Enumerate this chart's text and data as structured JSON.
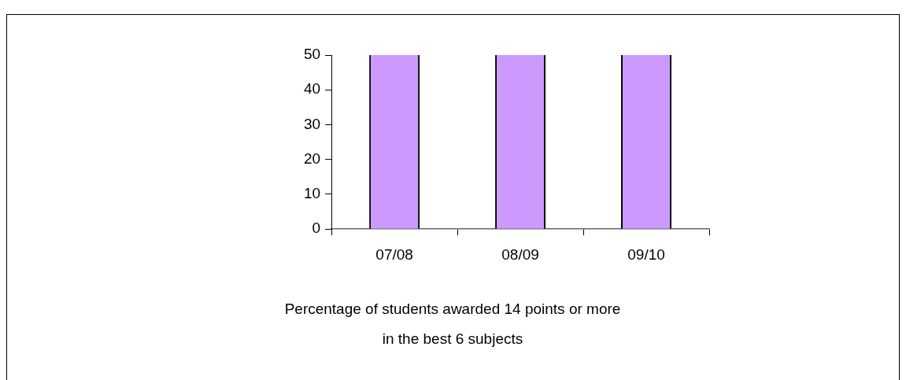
{
  "chart_data": {
    "type": "bar",
    "title": "Percentage of students awarded 14 points or more in the best 6 subjects",
    "categories": [
      "07/08",
      "08/09",
      "09/10"
    ],
    "values": [
      50,
      50,
      50
    ],
    "color": "#cc99ff",
    "ylim": [
      0,
      50
    ],
    "yticks": [
      0,
      10,
      20,
      30,
      40,
      50
    ],
    "grid": false,
    "legend": false
  }
}
